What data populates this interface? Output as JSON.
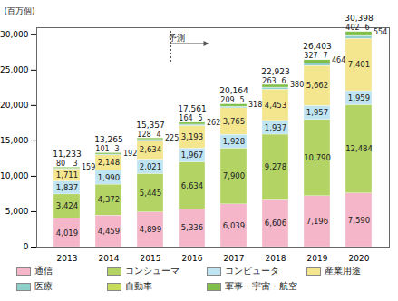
{
  "chart_data": {
    "type": "bar",
    "stacked": true,
    "data_labels": true,
    "grid": false,
    "legend": "bottom",
    "ylabel": "(百万個)",
    "categories": [
      "2013",
      "2014",
      "2015",
      "2016",
      "2017",
      "2018",
      "2019",
      "2020"
    ],
    "ylim": [
      0,
      31000
    ],
    "yticks": [
      0,
      {
        "value": 5000,
        "label": "5,000"
      },
      {
        "value": 10000,
        "label": "10,000"
      },
      {
        "value": 15000,
        "label": "15,000"
      },
      {
        "value": 20000,
        "label": "20,000"
      },
      {
        "value": 25000,
        "label": "25,000"
      },
      {
        "value": 30000,
        "label": "30,000"
      }
    ],
    "annotations": [
      {
        "text": "予測",
        "x": "2016"
      }
    ],
    "totals": [
      11233,
      13265,
      15357,
      17561,
      20164,
      22923,
      26403,
      30398
    ],
    "total_labels": [
      "11,233",
      "13,265",
      "15,357",
      "17,561",
      "20,164",
      "22,923",
      "26,403",
      "30,398"
    ],
    "series": [
      {
        "name": "通信",
        "color": "#f4b6c8",
        "values": [
          4019,
          4459,
          4899,
          5336,
          6039,
          6606,
          7196,
          7590
        ],
        "value_labels": [
          "4,019",
          "4,459",
          "4,899",
          "5,336",
          "6,039",
          "6,606",
          "7,196",
          "7,590"
        ]
      },
      {
        "name": "コンシューマ",
        "color": "#b3d465",
        "values": [
          3424,
          4372,
          5445,
          6634,
          7900,
          9278,
          10790,
          12484
        ],
        "value_labels": [
          "3,424",
          "4,372",
          "5,445",
          "6,634",
          "7,900",
          "9,278",
          "10,790",
          "12,484"
        ]
      },
      {
        "name": "コンピュータ",
        "color": "#bfe4f2",
        "values": [
          1837,
          1990,
          2021,
          1967,
          1928,
          1937,
          1957,
          1959
        ],
        "value_labels": [
          "1,837",
          "1,990",
          "2,021",
          "1,967",
          "1,928",
          "1,937",
          "1,957",
          "1,959"
        ]
      },
      {
        "name": "産業用途",
        "color": "#f3e68f",
        "values": [
          1711,
          2148,
          2634,
          3193,
          3765,
          4453,
          5662,
          7401
        ],
        "value_labels": [
          "1,711",
          "2,148",
          "2,634",
          "3,193",
          "3,765",
          "4,453",
          "5,662",
          "7,401"
        ]
      },
      {
        "name": "医療",
        "color": "#8fcfca",
        "values": [
          80,
          101,
          128,
          164,
          209,
          263,
          327,
          402
        ]
      },
      {
        "name": "自動車",
        "color": "#c6dc5a",
        "values": [
          3,
          3,
          4,
          5,
          5,
          6,
          7,
          6
        ]
      },
      {
        "name": "軍事・宇宙・航空",
        "color": "#7fbf4a",
        "values": [
          159,
          192,
          225,
          262,
          318,
          380,
          464,
          554
        ]
      }
    ]
  }
}
